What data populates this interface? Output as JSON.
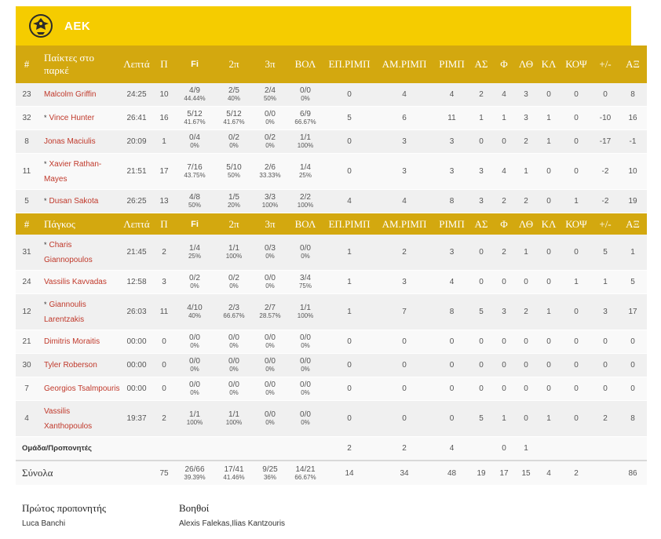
{
  "team": {
    "name": "ΑΕΚ",
    "logo": "aek-eagle-logo"
  },
  "colors": {
    "header": "#d3a80f",
    "team_bar": "#f5cc00",
    "player_link": "#c0392b"
  },
  "headers": {
    "num": "#",
    "starters": "Παίκτες στο παρκέ",
    "bench": "Πάγκος",
    "cols": [
      "Λεπτά",
      "Π",
      "Fi̶",
      "2π",
      "3π",
      "ΒΟΛ",
      "ΕΠ.ΡΙΜΠ",
      "ΑΜ.ΡΙΜΠ",
      "ΡΙΜΠ",
      "ΑΣ",
      "Φ",
      "ΛΘ",
      "ΚΛ",
      "ΚΟΨ",
      "+/-",
      "ΑΞ"
    ]
  },
  "starters": [
    {
      "num": "23",
      "star": "",
      "name": "Malcolm Griffin",
      "min": "24:25",
      "pts": "10",
      "fg": "4/9",
      "fg_pct": "44.44%",
      "two": "2/5",
      "two_pct": "40%",
      "three": "2/4",
      "three_pct": "50%",
      "ft": "0/0",
      "ft_pct": "0%",
      "oreb": "0",
      "dreb": "4",
      "reb": "4",
      "ast": "2",
      "pf": "4",
      "to": "3",
      "stl": "0",
      "blk": "0",
      "pm": "0",
      "eff": "8"
    },
    {
      "num": "32",
      "star": "*",
      "name": "Vince Hunter",
      "min": "26:41",
      "pts": "16",
      "fg": "5/12",
      "fg_pct": "41.67%",
      "two": "5/12",
      "two_pct": "41.67%",
      "three": "0/0",
      "three_pct": "0%",
      "ft": "6/9",
      "ft_pct": "66.67%",
      "oreb": "5",
      "dreb": "6",
      "reb": "11",
      "ast": "1",
      "pf": "1",
      "to": "3",
      "stl": "1",
      "blk": "0",
      "pm": "-10",
      "eff": "16"
    },
    {
      "num": "8",
      "star": "",
      "name": "Jonas Maciulis",
      "min": "20:09",
      "pts": "1",
      "fg": "0/4",
      "fg_pct": "0%",
      "two": "0/2",
      "two_pct": "0%",
      "three": "0/2",
      "three_pct": "0%",
      "ft": "1/1",
      "ft_pct": "100%",
      "oreb": "0",
      "dreb": "3",
      "reb": "3",
      "ast": "0",
      "pf": "0",
      "to": "2",
      "stl": "1",
      "blk": "0",
      "pm": "-17",
      "eff": "-1"
    },
    {
      "num": "11",
      "star": "*",
      "name": "Xavier Rathan-Mayes",
      "min": "21:51",
      "pts": "17",
      "fg": "7/16",
      "fg_pct": "43.75%",
      "two": "5/10",
      "two_pct": "50%",
      "three": "2/6",
      "three_pct": "33.33%",
      "ft": "1/4",
      "ft_pct": "25%",
      "oreb": "0",
      "dreb": "3",
      "reb": "3",
      "ast": "3",
      "pf": "4",
      "to": "1",
      "stl": "0",
      "blk": "0",
      "pm": "-2",
      "eff": "10"
    },
    {
      "num": "5",
      "star": "*",
      "name": "Dusan Sakota",
      "min": "26:25",
      "pts": "13",
      "fg": "4/8",
      "fg_pct": "50%",
      "two": "1/5",
      "two_pct": "20%",
      "three": "3/3",
      "three_pct": "100%",
      "ft": "2/2",
      "ft_pct": "100%",
      "oreb": "4",
      "dreb": "4",
      "reb": "8",
      "ast": "3",
      "pf": "2",
      "to": "2",
      "stl": "0",
      "blk": "1",
      "pm": "-2",
      "eff": "19"
    }
  ],
  "bench": [
    {
      "num": "31",
      "star": "*",
      "name": "Charis Giannopoulos",
      "min": "21:45",
      "pts": "2",
      "fg": "1/4",
      "fg_pct": "25%",
      "two": "1/1",
      "two_pct": "100%",
      "three": "0/3",
      "three_pct": "0%",
      "ft": "0/0",
      "ft_pct": "0%",
      "oreb": "1",
      "dreb": "2",
      "reb": "3",
      "ast": "0",
      "pf": "2",
      "to": "1",
      "stl": "0",
      "blk": "0",
      "pm": "5",
      "eff": "1"
    },
    {
      "num": "24",
      "star": "",
      "name": "Vassilis Kavvadas",
      "min": "12:58",
      "pts": "3",
      "fg": "0/2",
      "fg_pct": "0%",
      "two": "0/2",
      "two_pct": "0%",
      "three": "0/0",
      "three_pct": "0%",
      "ft": "3/4",
      "ft_pct": "75%",
      "oreb": "1",
      "dreb": "3",
      "reb": "4",
      "ast": "0",
      "pf": "0",
      "to": "0",
      "stl": "0",
      "blk": "1",
      "pm": "1",
      "eff": "5"
    },
    {
      "num": "12",
      "star": "*",
      "name": "Giannoulis Larentzakis",
      "min": "26:03",
      "pts": "11",
      "fg": "4/10",
      "fg_pct": "40%",
      "two": "2/3",
      "two_pct": "66.67%",
      "three": "2/7",
      "three_pct": "28.57%",
      "ft": "1/1",
      "ft_pct": "100%",
      "oreb": "1",
      "dreb": "7",
      "reb": "8",
      "ast": "5",
      "pf": "3",
      "to": "2",
      "stl": "1",
      "blk": "0",
      "pm": "3",
      "eff": "17"
    },
    {
      "num": "21",
      "star": "",
      "name": "Dimitris Moraitis",
      "min": "00:00",
      "pts": "0",
      "fg": "0/0",
      "fg_pct": "0%",
      "two": "0/0",
      "two_pct": "0%",
      "three": "0/0",
      "three_pct": "0%",
      "ft": "0/0",
      "ft_pct": "0%",
      "oreb": "0",
      "dreb": "0",
      "reb": "0",
      "ast": "0",
      "pf": "0",
      "to": "0",
      "stl": "0",
      "blk": "0",
      "pm": "0",
      "eff": "0"
    },
    {
      "num": "30",
      "star": "",
      "name": "Tyler Roberson",
      "min": "00:00",
      "pts": "0",
      "fg": "0/0",
      "fg_pct": "0%",
      "two": "0/0",
      "two_pct": "0%",
      "three": "0/0",
      "three_pct": "0%",
      "ft": "0/0",
      "ft_pct": "0%",
      "oreb": "0",
      "dreb": "0",
      "reb": "0",
      "ast": "0",
      "pf": "0",
      "to": "0",
      "stl": "0",
      "blk": "0",
      "pm": "0",
      "eff": "0"
    },
    {
      "num": "7",
      "star": "",
      "name": "Georgios Tsalmpouris",
      "min": "00:00",
      "pts": "0",
      "fg": "0/0",
      "fg_pct": "0%",
      "two": "0/0",
      "two_pct": "0%",
      "three": "0/0",
      "three_pct": "0%",
      "ft": "0/0",
      "ft_pct": "0%",
      "oreb": "0",
      "dreb": "0",
      "reb": "0",
      "ast": "0",
      "pf": "0",
      "to": "0",
      "stl": "0",
      "blk": "0",
      "pm": "0",
      "eff": "0"
    },
    {
      "num": "4",
      "star": "",
      "name": "Vassilis Xanthopoulos",
      "min": "19:37",
      "pts": "2",
      "fg": "1/1",
      "fg_pct": "100%",
      "two": "1/1",
      "two_pct": "100%",
      "three": "0/0",
      "three_pct": "0%",
      "ft": "0/0",
      "ft_pct": "0%",
      "oreb": "0",
      "dreb": "0",
      "reb": "0",
      "ast": "5",
      "pf": "1",
      "to": "0",
      "stl": "1",
      "blk": "0",
      "pm": "2",
      "eff": "8"
    }
  ],
  "team_row": {
    "label": "Ομάδα/Προπονητές",
    "oreb": "2",
    "dreb": "2",
    "reb": "4",
    "ast": "",
    "pf": "0",
    "to": "1"
  },
  "totals": {
    "label": "Σύνολα",
    "pts": "75",
    "fg": "26/66",
    "fg_pct": "39.39%",
    "two": "17/41",
    "two_pct": "41.46%",
    "three": "9/25",
    "three_pct": "36%",
    "ft": "14/21",
    "ft_pct": "66.67%",
    "oreb": "14",
    "dreb": "34",
    "reb": "48",
    "ast": "19",
    "pf": "17",
    "to": "15",
    "stl": "4",
    "blk": "2",
    "pm": "",
    "eff": "86"
  },
  "coaches": {
    "head_title": "Πρώτος προπονητής",
    "head_name": "Luca Banchi",
    "assist_title": "Βοηθοί",
    "assist_names": "Alexis Falekas,Ilias Kantzouris"
  }
}
